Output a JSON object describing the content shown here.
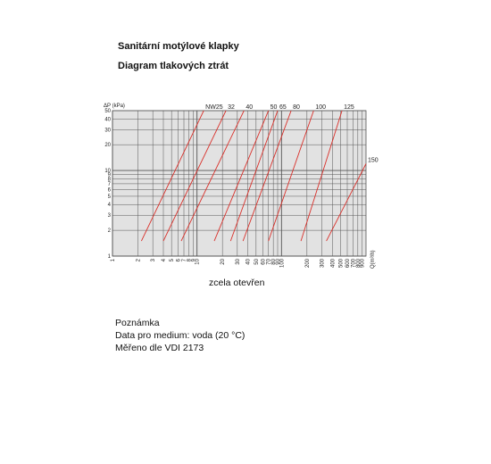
{
  "page": {
    "title": "Sanitární motýlové klapky",
    "subtitle": "Diagram tlakových ztrát",
    "notes": [
      "Poznámka",
      "Data pro medium: voda (20 °C)",
      "Měřeno dle VDI 2173"
    ]
  },
  "colors": {
    "series": "#d9302a",
    "plot_bg": "#e2e2e2",
    "grid": "#555555",
    "text": "#111111"
  },
  "chart_data": {
    "type": "line",
    "title": "",
    "ylabel": "ΔP (kPa)",
    "xlabel": "Q(m³/h)",
    "caption": "zcela otevřen",
    "x_scale": "log",
    "y_scale": "log",
    "xlim": [
      1,
      1000
    ],
    "ylim": [
      1,
      50
    ],
    "grid": true,
    "x_ticks": [
      1,
      2,
      3,
      4,
      5,
      6,
      7,
      8,
      9,
      10,
      20,
      30,
      40,
      50,
      60,
      70,
      80,
      90,
      100,
      200,
      300,
      400,
      500,
      600,
      700,
      800,
      900
    ],
    "x_tick_labels": [
      "1",
      "2",
      "3",
      "4",
      "5",
      "6",
      "7",
      "8",
      "9",
      "10",
      "20",
      "30",
      "40",
      "50",
      "60",
      "70",
      "80",
      "90",
      "100",
      "200",
      "300",
      "400",
      "500",
      "600",
      "700",
      "800",
      "900"
    ],
    "y_ticks": [
      1,
      2,
      3,
      4,
      5,
      6,
      7,
      8,
      9,
      10,
      20,
      30,
      40,
      50
    ],
    "y_tick_labels": [
      "1",
      "2",
      "3",
      "4",
      "5",
      "6",
      "7",
      "8",
      "9",
      "10",
      "20",
      "30",
      "40",
      "50"
    ],
    "series": [
      {
        "name": "NW25",
        "x": [
          2.2,
          12
        ],
        "y": [
          1.5,
          50
        ]
      },
      {
        "name": "32",
        "x": [
          4.0,
          22
        ],
        "y": [
          1.5,
          50
        ]
      },
      {
        "name": "40",
        "x": [
          6.5,
          36
        ],
        "y": [
          1.5,
          50
        ]
      },
      {
        "name": "50",
        "x": [
          16,
          70
        ],
        "y": [
          1.5,
          50
        ]
      },
      {
        "name": "65",
        "x": [
          25,
          90
        ],
        "y": [
          1.5,
          50
        ]
      },
      {
        "name": "80",
        "x": [
          35,
          130
        ],
        "y": [
          1.5,
          50
        ]
      },
      {
        "name": "100",
        "x": [
          70,
          240
        ],
        "y": [
          1.5,
          50
        ]
      },
      {
        "name": "125",
        "x": [
          170,
          520
        ],
        "y": [
          1.5,
          50
        ]
      },
      {
        "name": "150",
        "x": [
          340,
          1000
        ],
        "y": [
          1.5,
          12
        ]
      }
    ]
  }
}
